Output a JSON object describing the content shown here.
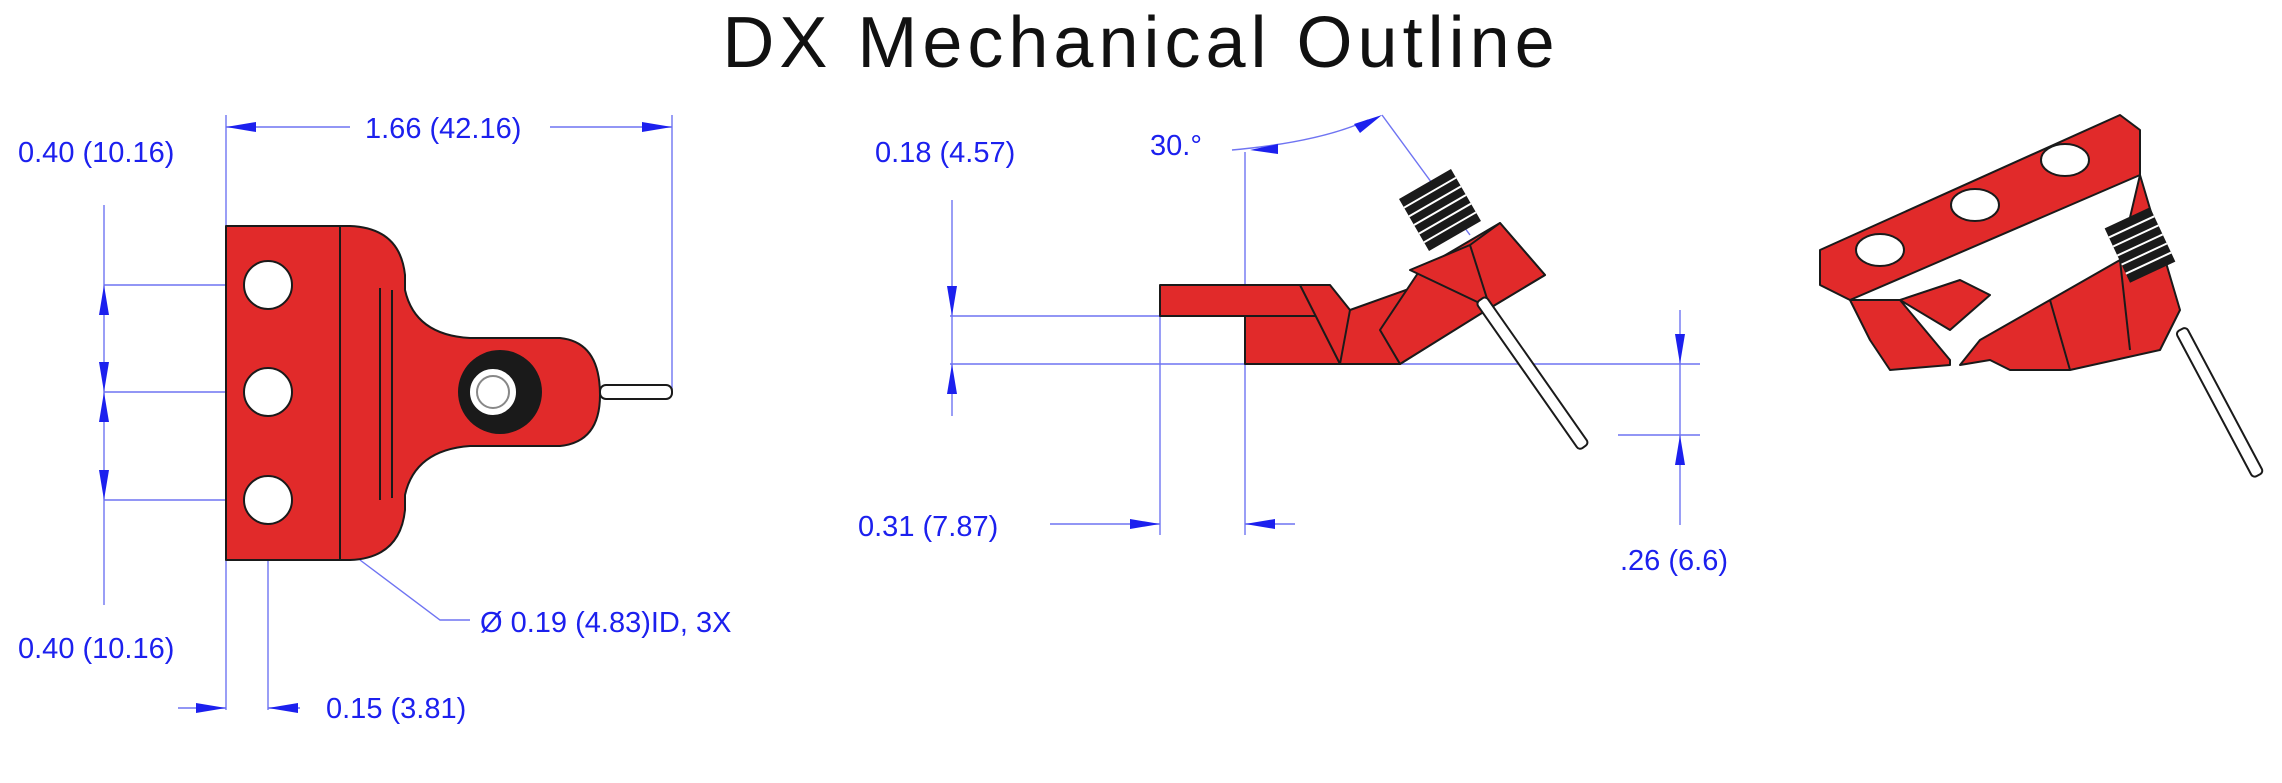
{
  "title": "DX Mechanical Outline",
  "colors": {
    "part": "#e12a2a",
    "dimension": "#1c20ee",
    "extension_line": "#6f74f2"
  },
  "front_view": {
    "overall_width": "1.66 (42.16)",
    "top_offset": "0.40 (10.16)",
    "bottom_offset": "0.40 (10.16)",
    "edge_offset": "0.15 (3.81)",
    "hole_callout": "Ø 0.19  (4.83)ID, 3X"
  },
  "side_view": {
    "angle": "30.°",
    "flange_thickness": "0.18 (4.57)",
    "flange_length": "0.31 (7.87)",
    "pin_drop": ".26  (6.6)"
  }
}
